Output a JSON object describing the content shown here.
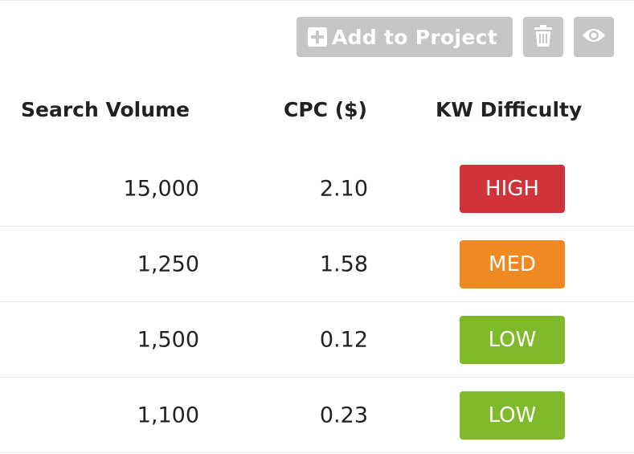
{
  "toolbar": {
    "add_to_project_label": "Add to Project",
    "add_icon": "plus-square-icon",
    "delete_icon": "trash-icon",
    "view_icon": "eye-icon",
    "button_color": "#c6c6c6"
  },
  "table": {
    "columns": [
      "Search Volume",
      "CPC ($)",
      "KW Difficulty"
    ],
    "rows": [
      {
        "search_volume": "15,000",
        "cpc": "2.10",
        "difficulty": "HIGH",
        "difficulty_color": "#d0333a"
      },
      {
        "search_volume": "1,250",
        "cpc": "1.58",
        "difficulty": "MED",
        "difficulty_color": "#ef8a23"
      },
      {
        "search_volume": "1,500",
        "cpc": "0.12",
        "difficulty": "LOW",
        "difficulty_color": "#7fba2a"
      },
      {
        "search_volume": "1,100",
        "cpc": "0.23",
        "difficulty": "LOW",
        "difficulty_color": "#7fba2a"
      }
    ]
  }
}
